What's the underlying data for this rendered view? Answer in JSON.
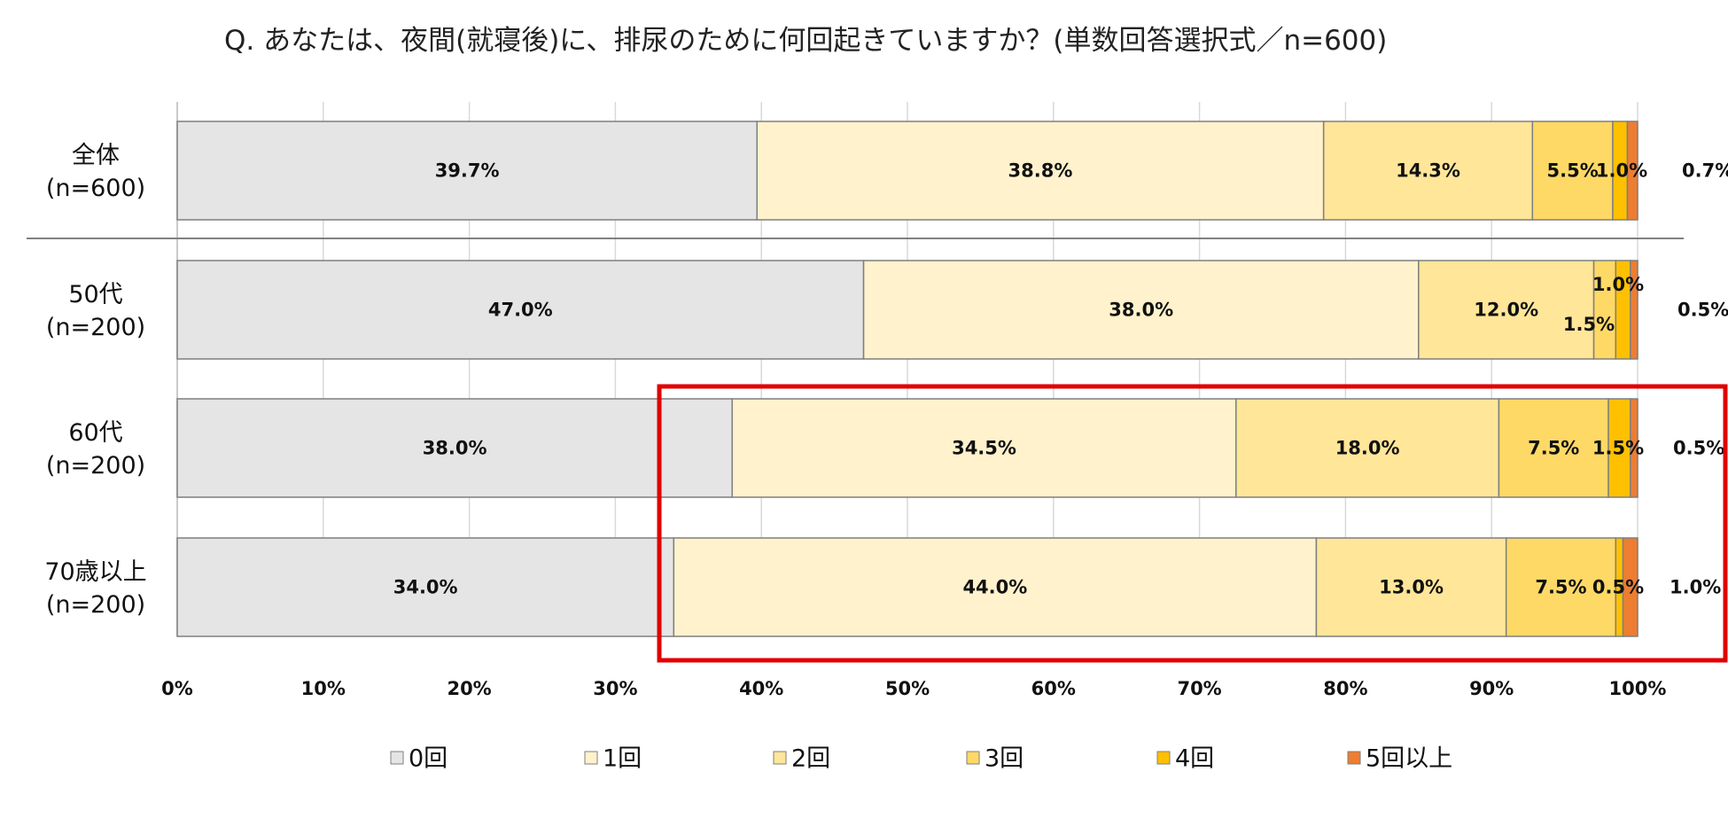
{
  "chart_data": {
    "type": "bar",
    "orientation": "horizontal",
    "stacked": "100%",
    "title": "Q. あなたは、夜間(就寝後)に、排尿のために何回起きていますか？(単数回答選択式／n=600)",
    "categories": [
      [
        "全体",
        "(n=600)"
      ],
      [
        "50代",
        "(n=200)"
      ],
      [
        "60代",
        "(n=200)"
      ],
      [
        "70歳以上",
        "(n=200)"
      ]
    ],
    "series": [
      {
        "name": "0回",
        "color": "#e5e5e5",
        "values": [
          39.7,
          47.0,
          38.0,
          34.0
        ]
      },
      {
        "name": "1回",
        "color": "#fff2cc",
        "values": [
          38.8,
          38.0,
          34.5,
          44.0
        ]
      },
      {
        "name": "2回",
        "color": "#ffe699",
        "values": [
          14.3,
          12.0,
          18.0,
          13.0
        ]
      },
      {
        "name": "3回",
        "color": "#ffd966",
        "values": [
          5.5,
          1.5,
          7.5,
          7.5
        ]
      },
      {
        "name": "4回",
        "color": "#ffc000",
        "values": [
          1.0,
          1.0,
          1.5,
          0.5
        ]
      },
      {
        "name": "5回以上",
        "color": "#ed7d31",
        "values": [
          0.7,
          0.5,
          0.5,
          1.0
        ]
      }
    ],
    "data_labels": [
      [
        "39.7%",
        "38.8%",
        "14.3%",
        "5.5%",
        "1.0%",
        "0.7%"
      ],
      [
        "47.0%",
        "38.0%",
        "12.0%",
        "1.5%",
        "1.0%",
        "0.5%"
      ],
      [
        "38.0%",
        "34.5%",
        "18.0%",
        "7.5%",
        "1.5%",
        "0.5%"
      ],
      [
        "34.0%",
        "44.0%",
        "13.0%",
        "7.5%",
        "0.5%",
        "1.0%"
      ]
    ],
    "x_ticks": [
      "0%",
      "10%",
      "20%",
      "30%",
      "40%",
      "50%",
      "60%",
      "70%",
      "80%",
      "90%",
      "100%"
    ],
    "xlim": [
      0,
      100
    ],
    "grid": true,
    "legend_position": "bottom",
    "highlight": {
      "color": "#e00000",
      "categories": [
        "60代",
        "70歳以上"
      ],
      "series_from": "1回"
    }
  }
}
